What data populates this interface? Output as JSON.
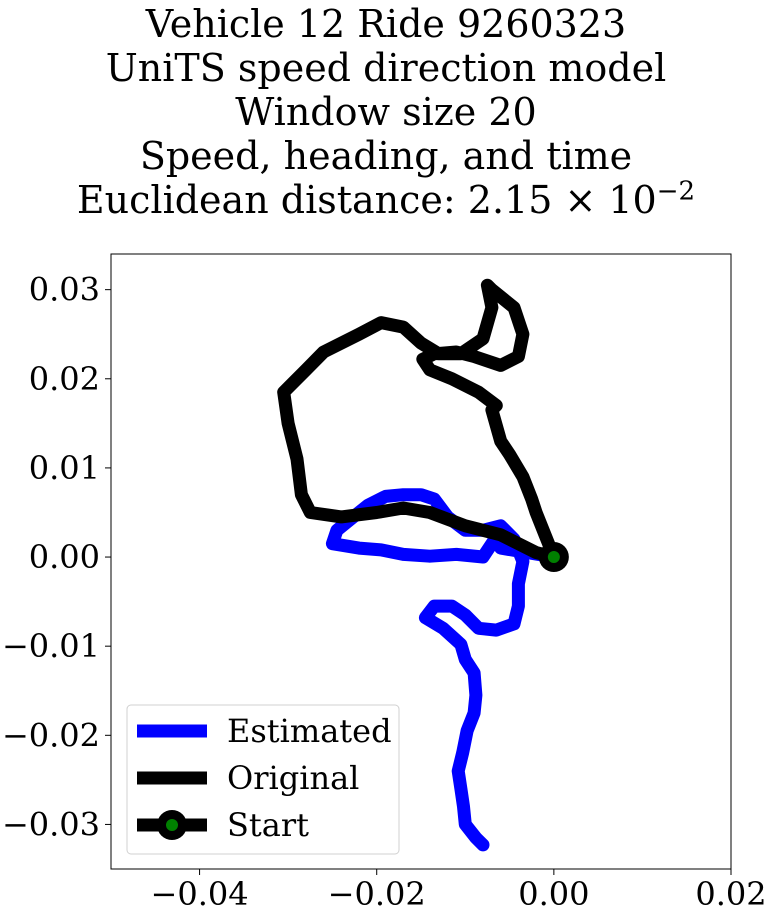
{
  "chart_data": {
    "type": "line",
    "title_lines": [
      "Vehicle 12 Ride 9260323",
      "UniTS speed direction model",
      "Window size 20",
      "Speed, heading, and time",
      "Euclidean distance: 2.15 × 10⁻²"
    ],
    "title_distance_prefix": "Euclidean distance: 2.15 × 10",
    "title_distance_exponent": "−2",
    "xlim": [
      -0.05,
      0.02
    ],
    "ylim": [
      -0.035,
      0.034
    ],
    "x_ticks": [
      -0.04,
      -0.02,
      0.0,
      0.02
    ],
    "x_tick_labels": [
      "−0.04",
      "−0.02",
      "0.00",
      "0.02"
    ],
    "y_ticks": [
      0.03,
      0.02,
      0.01,
      0.0,
      -0.01,
      -0.02,
      -0.03
    ],
    "y_tick_labels": [
      "0.03",
      "0.02",
      "0.01",
      "0.00",
      "−0.01",
      "−0.02",
      "−0.03"
    ],
    "grid": false,
    "legend_position": "lower-left",
    "series": [
      {
        "name": "Estimated",
        "color": "#0000ff",
        "points": [
          [
            0.0,
            0.0
          ],
          [
            -0.003,
            0.0005
          ],
          [
            -0.006,
            0.001
          ],
          [
            -0.006,
            0.003
          ],
          [
            -0.008,
            0.0
          ],
          [
            -0.011,
            0.0003
          ],
          [
            -0.014,
            0.0001
          ],
          [
            -0.017,
            0.0003
          ],
          [
            -0.0195,
            0.0008
          ],
          [
            -0.022,
            0.001
          ],
          [
            -0.025,
            0.0015
          ],
          [
            -0.0245,
            0.003
          ],
          [
            -0.023,
            0.0042
          ],
          [
            -0.021,
            0.0058
          ],
          [
            -0.019,
            0.0068
          ],
          [
            -0.017,
            0.007
          ],
          [
            -0.015,
            0.007
          ],
          [
            -0.0135,
            0.0065
          ],
          [
            -0.012,
            0.0045
          ],
          [
            -0.01,
            0.003
          ],
          [
            -0.008,
            0.003
          ],
          [
            -0.006,
            0.0035
          ],
          [
            -0.0045,
            0.002
          ],
          [
            -0.0035,
            -0.0005
          ],
          [
            -0.004,
            -0.003
          ],
          [
            -0.004,
            -0.0055
          ],
          [
            -0.0045,
            -0.0075
          ],
          [
            -0.0065,
            -0.0082
          ],
          [
            -0.0085,
            -0.008
          ],
          [
            -0.01,
            -0.0065
          ],
          [
            -0.0115,
            -0.0055
          ],
          [
            -0.0135,
            -0.0055
          ],
          [
            -0.0145,
            -0.0068
          ],
          [
            -0.0125,
            -0.008
          ],
          [
            -0.0105,
            -0.0098
          ],
          [
            -0.01,
            -0.0115
          ],
          [
            -0.009,
            -0.013
          ],
          [
            -0.0088,
            -0.0155
          ],
          [
            -0.009,
            -0.0175
          ],
          [
            -0.0098,
            -0.0195
          ],
          [
            -0.0103,
            -0.022
          ],
          [
            -0.0108,
            -0.024
          ],
          [
            -0.0105,
            -0.026
          ],
          [
            -0.0102,
            -0.028
          ],
          [
            -0.01,
            -0.03
          ],
          [
            -0.0088,
            -0.0315
          ],
          [
            -0.008,
            -0.0323
          ]
        ]
      },
      {
        "name": "Original",
        "color": "#000000",
        "points": [
          [
            0.0,
            0.0
          ],
          [
            -0.001,
            0.0025
          ],
          [
            -0.002,
            0.005
          ],
          [
            -0.0025,
            0.0065
          ],
          [
            -0.0035,
            0.009
          ],
          [
            -0.005,
            0.0115
          ],
          [
            -0.006,
            0.013
          ],
          [
            -0.007,
            0.0165
          ],
          [
            -0.0065,
            0.017
          ],
          [
            -0.0085,
            0.0185
          ],
          [
            -0.0115,
            0.02
          ],
          [
            -0.014,
            0.021
          ],
          [
            -0.0148,
            0.0222
          ],
          [
            -0.0135,
            0.0228
          ],
          [
            -0.011,
            0.023
          ],
          [
            -0.009,
            0.0225
          ],
          [
            -0.006,
            0.0215
          ],
          [
            -0.004,
            0.0225
          ],
          [
            -0.0035,
            0.025
          ],
          [
            -0.0045,
            0.028
          ],
          [
            -0.007,
            0.03
          ],
          [
            -0.0075,
            0.0305
          ],
          [
            -0.007,
            0.028
          ],
          [
            -0.008,
            0.0245
          ],
          [
            -0.0105,
            0.0228
          ],
          [
            -0.013,
            0.0228
          ],
          [
            -0.015,
            0.024
          ],
          [
            -0.017,
            0.0258
          ],
          [
            -0.0195,
            0.0263
          ],
          [
            -0.022,
            0.025
          ],
          [
            -0.026,
            0.023
          ],
          [
            -0.028,
            0.021
          ],
          [
            -0.0305,
            0.0185
          ],
          [
            -0.03,
            0.015
          ],
          [
            -0.029,
            0.011
          ],
          [
            -0.0285,
            0.007
          ],
          [
            -0.0275,
            0.005
          ],
          [
            -0.024,
            0.0045
          ],
          [
            -0.02,
            0.005
          ],
          [
            -0.017,
            0.0055
          ],
          [
            -0.014,
            0.005
          ],
          [
            -0.01,
            0.0035
          ],
          [
            -0.006,
            0.0025
          ],
          [
            -0.002,
            0.0005
          ],
          [
            0.0,
            0.0
          ]
        ]
      }
    ],
    "start": {
      "name": "Start",
      "x": 0.0,
      "y": 0.0,
      "outer_color": "#000000",
      "inner_color": "#008000"
    },
    "legend": [
      {
        "label": "Estimated",
        "color": "#0000ff",
        "kind": "line"
      },
      {
        "label": "Original",
        "color": "#000000",
        "kind": "line"
      },
      {
        "label": "Start",
        "color": "#000000",
        "inner_color": "#008000",
        "kind": "line-marker"
      }
    ]
  }
}
